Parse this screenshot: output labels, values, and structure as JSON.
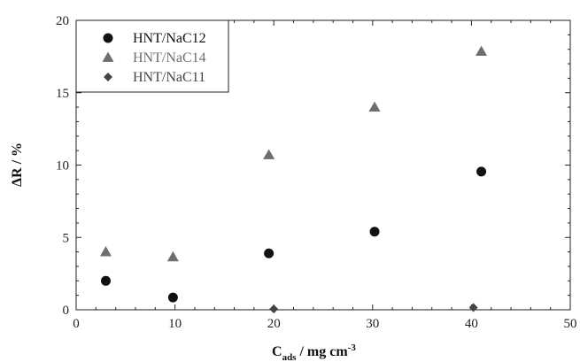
{
  "chart_data": {
    "type": "scatter",
    "xlabel": {
      "main": "C",
      "sub": "ads",
      "rest": " / mg cm",
      "sup": "-3"
    },
    "ylabel": "ΔR / %",
    "xlim": [
      0,
      50
    ],
    "ylim": [
      0,
      20
    ],
    "xticks": [
      "0",
      "10",
      "20",
      "30",
      "40",
      "50"
    ],
    "yticks": [
      "0",
      "5",
      "10",
      "15",
      "20"
    ],
    "grid": false,
    "legend_position": "top-left",
    "series": [
      {
        "name": "HNT/NaC12",
        "marker": "circle",
        "color": "#111111",
        "points": [
          [
            3,
            2.0
          ],
          [
            9.8,
            0.85
          ],
          [
            19.5,
            3.9
          ],
          [
            30.2,
            5.4
          ],
          [
            41,
            9.55
          ]
        ]
      },
      {
        "name": "HNT/NaC14",
        "marker": "triangle",
        "color": "#6e6e6e",
        "points": [
          [
            3,
            4.0
          ],
          [
            9.8,
            3.65
          ],
          [
            19.5,
            10.7
          ],
          [
            30.2,
            14.0
          ],
          [
            41,
            17.85
          ]
        ]
      },
      {
        "name": "HNT/NaC11",
        "marker": "diamond",
        "color": "#444444",
        "points": [
          [
            20,
            0.05
          ],
          [
            40.2,
            0.15
          ]
        ]
      }
    ]
  }
}
